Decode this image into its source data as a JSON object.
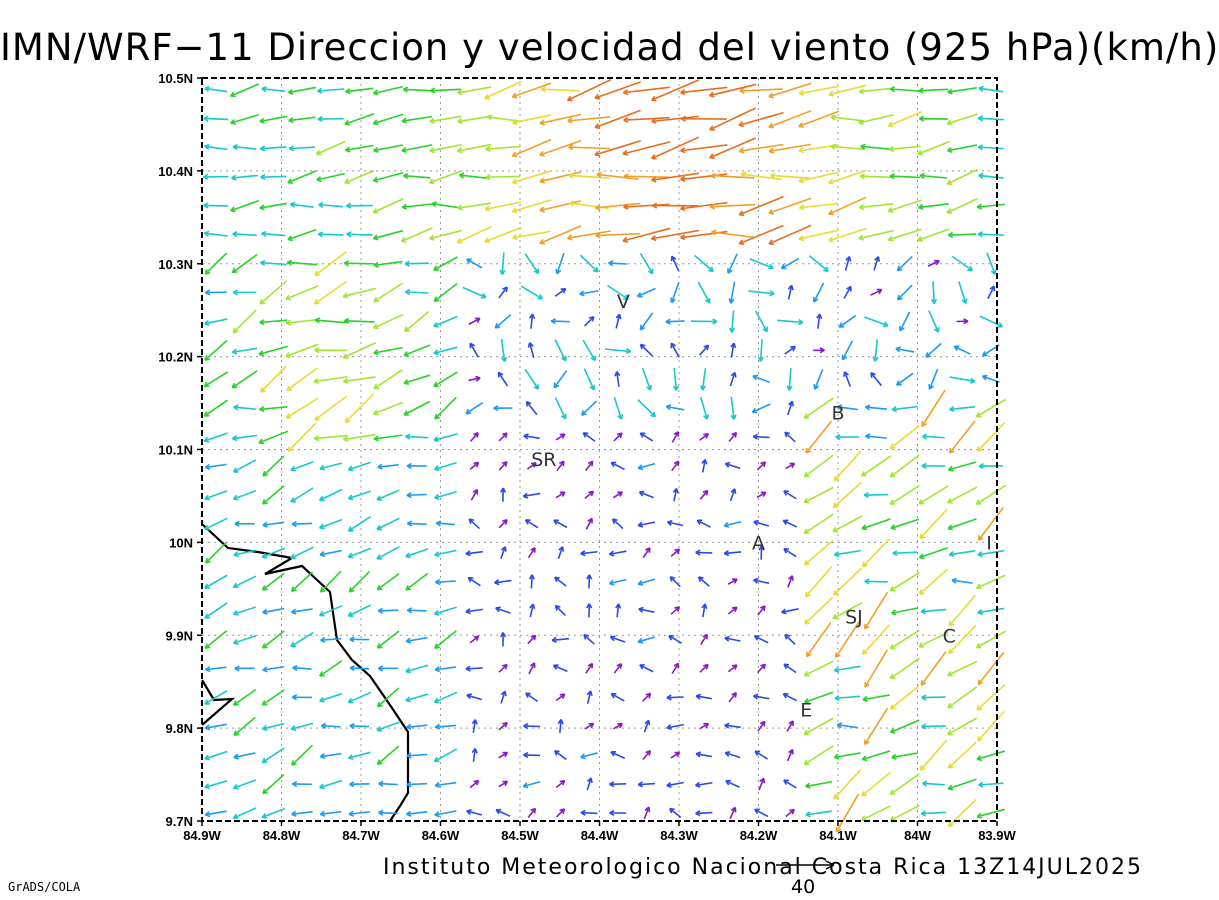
{
  "title": "IMN/WRF−11 Direccion y velocidad del viento (925 hPa)(km/h)",
  "footer": "Instituto Meteorologico Nacional Costa Rica 13Z14JUL2025",
  "credit": "GrADS/COLA",
  "map": {
    "lon_range": [
      -84.9,
      -83.9
    ],
    "lat_range": [
      9.7,
      10.5
    ],
    "grid": "dotted",
    "x_ticks": [
      "84.9W",
      "84.8W",
      "84.7W",
      "84.6W",
      "84.5W",
      "84.4W",
      "84.3W",
      "84.2W",
      "84.1W",
      "84W",
      "83.9W"
    ],
    "y_ticks": [
      "9.7N",
      "9.8N",
      "9.9N",
      "10N",
      "10.1N",
      "10.2N",
      "10.3N",
      "10.4N",
      "10.5N"
    ],
    "cities": [
      {
        "label": "V",
        "lon": -84.37,
        "lat": 10.26
      },
      {
        "label": "SR",
        "lon": -84.47,
        "lat": 10.09
      },
      {
        "label": "B",
        "lon": -84.1,
        "lat": 10.14
      },
      {
        "label": "A",
        "lon": -84.2,
        "lat": 10.0
      },
      {
        "label": "SJ",
        "lon": -84.08,
        "lat": 9.92
      },
      {
        "label": "C",
        "lon": -83.96,
        "lat": 9.9
      },
      {
        "label": "E",
        "lon": -84.14,
        "lat": 9.82
      },
      {
        "label": "I",
        "lon": -83.91,
        "lat": 10.0
      }
    ],
    "reference_vector": "40",
    "speed_colors": [
      "#8a19c8",
      "#2b4ae6",
      "#1e9bf0",
      "#19c8c8",
      "#28d228",
      "#a0e632",
      "#e6dc32",
      "#f0a028",
      "#e66e1e"
    ]
  }
}
